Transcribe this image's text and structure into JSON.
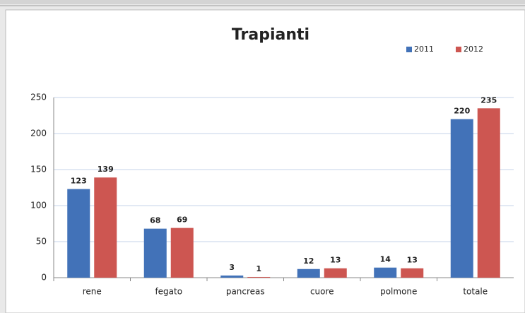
{
  "chart_data": {
    "type": "bar",
    "title": "Trapianti",
    "categories": [
      "rene",
      "fegato",
      "pancreas",
      "cuore",
      "polmone",
      "totale"
    ],
    "series": [
      {
        "name": "2011",
        "color": "#4272b8",
        "values": [
          123,
          68,
          3,
          12,
          14,
          220
        ]
      },
      {
        "name": "2012",
        "color": "#cd5651",
        "values": [
          139,
          69,
          1,
          13,
          13,
          235
        ]
      }
    ],
    "ylim": [
      0,
      250
    ],
    "yticks": [
      0,
      50,
      100,
      150,
      200,
      250
    ],
    "grid": true,
    "legend": "top-right"
  }
}
